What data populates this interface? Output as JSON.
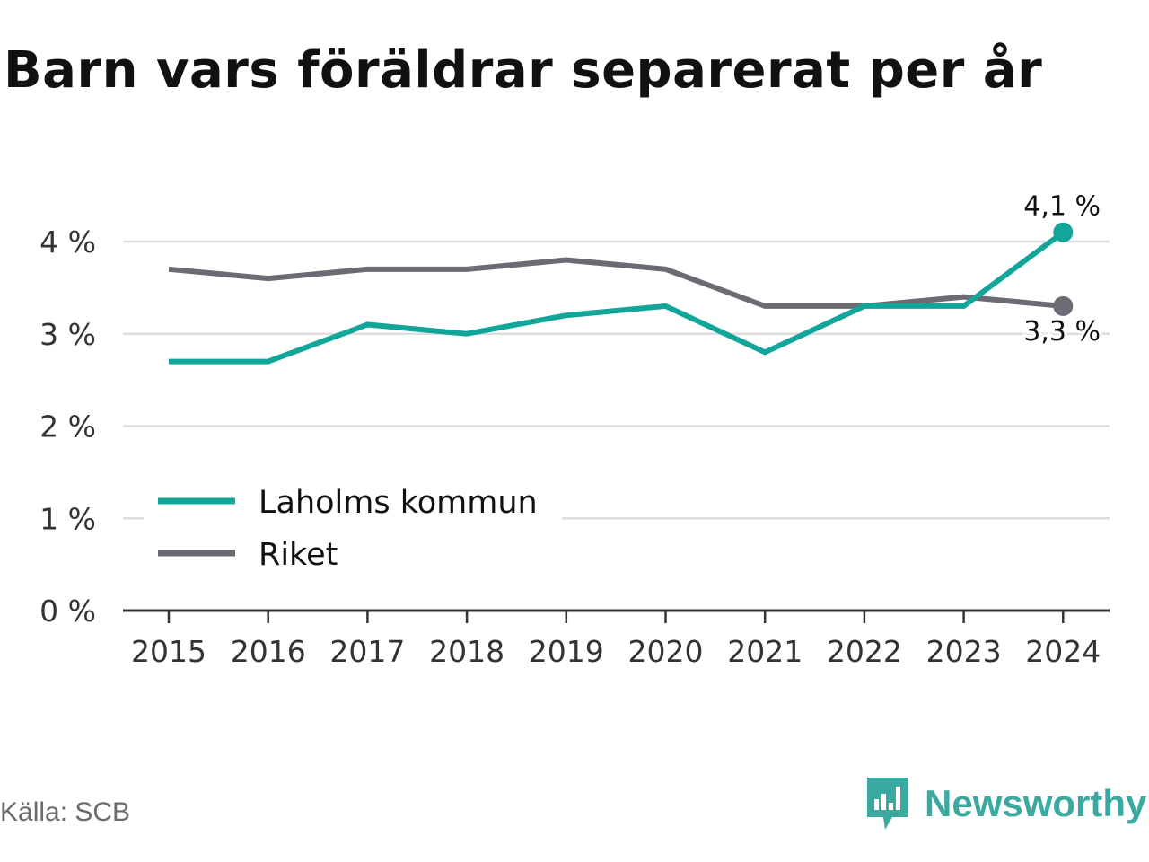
{
  "title": "Barn vars föräldrar separerat per år",
  "source": "Källa: SCB",
  "brand": {
    "name": "Newsworthy",
    "logo_icon": "newsworthy-bar-chart-icon"
  },
  "colors": {
    "kommun": "#12a59a",
    "riket": "#6b6b73",
    "grid": "#dedede",
    "axis": "#333333",
    "brand": "#3aa9a0"
  },
  "chart_data": {
    "type": "line",
    "x": [
      "2015",
      "2016",
      "2017",
      "2018",
      "2019",
      "2020",
      "2021",
      "2022",
      "2023",
      "2024"
    ],
    "series": [
      {
        "name": "Laholms kommun",
        "color": "#12a59a",
        "values": [
          2.7,
          2.7,
          3.1,
          3.0,
          3.2,
          3.3,
          2.8,
          3.3,
          3.3,
          4.1
        ]
      },
      {
        "name": "Riket",
        "color": "#6b6b73",
        "values": [
          3.7,
          3.6,
          3.7,
          3.7,
          3.8,
          3.7,
          3.3,
          3.3,
          3.4,
          3.3
        ]
      }
    ],
    "yticks": [
      "0 %",
      "1 %",
      "2 %",
      "3 %",
      "4 %"
    ],
    "ylim": [
      0,
      4.2
    ],
    "end_labels": [
      "4,1 %",
      "3,3 %"
    ],
    "legend_position": "bottom-left",
    "grid": true
  }
}
